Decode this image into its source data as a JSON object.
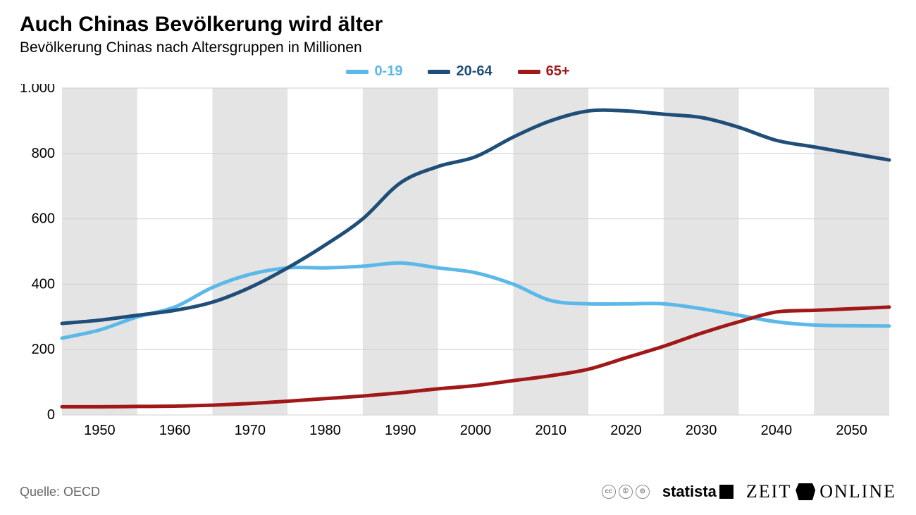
{
  "header": {
    "title": "Auch Chinas Bevölkerung wird älter",
    "subtitle": "Bevölkerung Chinas nach Altersgruppen in Millionen"
  },
  "chart": {
    "type": "line",
    "background_color": "#ffffff",
    "alt_band_color": "#e4e4e4",
    "grid_color": "#cfcfcf",
    "line_width": 5,
    "title_fontsize": 30,
    "subtitle_fontsize": 21,
    "axis_label_fontsize": 20,
    "legend_fontsize": 20,
    "x": {
      "min": 1945,
      "max": 2055,
      "tick_step": 10,
      "ticks": [
        1950,
        1960,
        1970,
        1980,
        1990,
        2000,
        2010,
        2020,
        2030,
        2040,
        2050
      ]
    },
    "y": {
      "min": 0,
      "max": 1000,
      "tick_step": 200,
      "ticks": [
        0,
        200,
        400,
        600,
        800,
        1000
      ],
      "tick_labels": [
        "0",
        "200",
        "400",
        "600",
        "800",
        "1.000"
      ]
    },
    "series": [
      {
        "name": "0-19",
        "label": "0-19",
        "color": "#5bb8e8",
        "points": [
          [
            1945,
            235
          ],
          [
            1950,
            260
          ],
          [
            1955,
            300
          ],
          [
            1960,
            330
          ],
          [
            1965,
            390
          ],
          [
            1970,
            430
          ],
          [
            1975,
            450
          ],
          [
            1980,
            450
          ],
          [
            1985,
            455
          ],
          [
            1990,
            465
          ],
          [
            1995,
            450
          ],
          [
            2000,
            435
          ],
          [
            2005,
            400
          ],
          [
            2010,
            350
          ],
          [
            2015,
            340
          ],
          [
            2020,
            340
          ],
          [
            2025,
            340
          ],
          [
            2030,
            325
          ],
          [
            2035,
            305
          ],
          [
            2040,
            285
          ],
          [
            2045,
            275
          ],
          [
            2050,
            273
          ],
          [
            2055,
            272
          ]
        ]
      },
      {
        "name": "20-64",
        "label": "20-64",
        "color": "#1f4e79",
        "points": [
          [
            1945,
            280
          ],
          [
            1950,
            290
          ],
          [
            1955,
            305
          ],
          [
            1960,
            320
          ],
          [
            1965,
            345
          ],
          [
            1970,
            390
          ],
          [
            1975,
            450
          ],
          [
            1980,
            520
          ],
          [
            1985,
            600
          ],
          [
            1990,
            710
          ],
          [
            1995,
            760
          ],
          [
            2000,
            790
          ],
          [
            2005,
            850
          ],
          [
            2010,
            900
          ],
          [
            2015,
            930
          ],
          [
            2020,
            930
          ],
          [
            2025,
            920
          ],
          [
            2030,
            910
          ],
          [
            2035,
            880
          ],
          [
            2040,
            840
          ],
          [
            2045,
            820
          ],
          [
            2050,
            800
          ],
          [
            2055,
            780
          ]
        ]
      },
      {
        "name": "65+",
        "label": "65+",
        "color": "#a01818",
        "points": [
          [
            1945,
            25
          ],
          [
            1950,
            25
          ],
          [
            1955,
            26
          ],
          [
            1960,
            27
          ],
          [
            1965,
            30
          ],
          [
            1970,
            35
          ],
          [
            1975,
            42
          ],
          [
            1980,
            50
          ],
          [
            1985,
            58
          ],
          [
            1990,
            68
          ],
          [
            1995,
            80
          ],
          [
            2000,
            90
          ],
          [
            2005,
            105
          ],
          [
            2010,
            120
          ],
          [
            2015,
            140
          ],
          [
            2020,
            175
          ],
          [
            2025,
            210
          ],
          [
            2030,
            250
          ],
          [
            2035,
            285
          ],
          [
            2040,
            315
          ],
          [
            2045,
            320
          ],
          [
            2050,
            325
          ],
          [
            2055,
            330
          ]
        ]
      }
    ]
  },
  "footer": {
    "source_label": "Quelle: OECD",
    "brands": {
      "statista": "statista",
      "zeit_left": "ZEIT",
      "zeit_right": "ONLINE"
    },
    "cc_icons": [
      "cc",
      "by",
      "nd"
    ]
  }
}
